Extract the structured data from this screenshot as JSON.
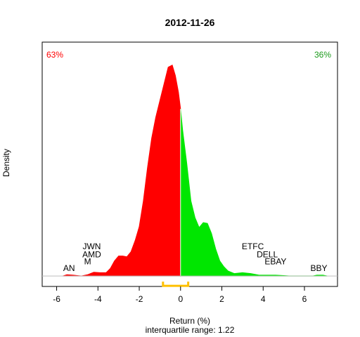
{
  "chart_data": {
    "type": "area",
    "title": "2012-11-26",
    "xlabel": "Return (%)",
    "ylabel": "Density",
    "subtitle": "interquartile range: 1.22",
    "xlim": [
      -6.7,
      7.6
    ],
    "ylim": [
      -0.025,
      0.56
    ],
    "x_ticks": [
      -6,
      -4,
      -2,
      0,
      2,
      4,
      6
    ],
    "split_at": 0,
    "negative_share_label": "63%",
    "positive_share_label": "36%",
    "colors": {
      "negative": "#ff0000",
      "positive": "#00e600",
      "iqr": "#ffc000",
      "baseline": "#bebebe",
      "pct_negative": "#ff0000",
      "pct_positive": "#1a9a1a"
    },
    "iqr": [
      -0.85,
      0.37
    ],
    "density_points": [
      [
        -5.7,
        0.0
      ],
      [
        -5.5,
        0.003
      ],
      [
        -5.2,
        0.002
      ],
      [
        -4.8,
        0.0
      ],
      [
        -4.5,
        0.003
      ],
      [
        -4.2,
        0.009
      ],
      [
        -3.9,
        0.008
      ],
      [
        -3.6,
        0.008
      ],
      [
        -3.4,
        0.018
      ],
      [
        -3.2,
        0.036
      ],
      [
        -3.0,
        0.048
      ],
      [
        -2.8,
        0.048
      ],
      [
        -2.6,
        0.046
      ],
      [
        -2.4,
        0.058
      ],
      [
        -2.2,
        0.085
      ],
      [
        -2.0,
        0.118
      ],
      [
        -1.8,
        0.18
      ],
      [
        -1.6,
        0.26
      ],
      [
        -1.4,
        0.33
      ],
      [
        -1.2,
        0.38
      ],
      [
        -1.0,
        0.42
      ],
      [
        -0.8,
        0.46
      ],
      [
        -0.6,
        0.5
      ],
      [
        -0.4,
        0.505
      ],
      [
        -0.25,
        0.48
      ],
      [
        -0.1,
        0.44
      ],
      [
        0.0,
        0.4
      ],
      [
        0.1,
        0.35
      ],
      [
        0.3,
        0.27
      ],
      [
        0.5,
        0.18
      ],
      [
        0.7,
        0.14
      ],
      [
        0.9,
        0.116
      ],
      [
        1.1,
        0.128
      ],
      [
        1.3,
        0.126
      ],
      [
        1.5,
        0.102
      ],
      [
        1.7,
        0.065
      ],
      [
        1.9,
        0.036
      ],
      [
        2.1,
        0.022
      ],
      [
        2.3,
        0.012
      ],
      [
        2.6,
        0.006
      ],
      [
        3.0,
        0.008
      ],
      [
        3.4,
        0.006
      ],
      [
        3.8,
        0.002
      ],
      [
        4.2,
        0.002
      ],
      [
        4.6,
        0.002
      ],
      [
        5.0,
        0.001
      ],
      [
        5.3,
        0.0
      ],
      [
        6.4,
        0.0
      ],
      [
        6.6,
        0.002
      ],
      [
        6.9,
        0.002
      ],
      [
        7.1,
        0.0
      ]
    ],
    "stock_labels": [
      {
        "label": "JWN",
        "x": -4.3,
        "y": 0.064
      },
      {
        "label": "AMD",
        "x": -4.3,
        "y": 0.045
      },
      {
        "label": "M",
        "x": -4.5,
        "y": 0.028
      },
      {
        "label": "AN",
        "x": -5.4,
        "y": 0.012
      },
      {
        "label": "ETFC",
        "x": 3.5,
        "y": 0.064
      },
      {
        "label": "DELL",
        "x": 4.2,
        "y": 0.045
      },
      {
        "label": "EBAY",
        "x": 4.6,
        "y": 0.028
      },
      {
        "label": "BBY",
        "x": 6.7,
        "y": 0.012
      }
    ]
  }
}
